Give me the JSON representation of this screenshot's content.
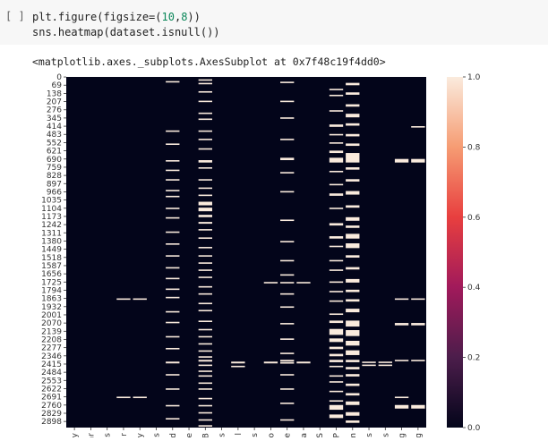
{
  "cell": {
    "run_label": "[ ]",
    "code_lines": [
      {
        "pre": "plt.figure(figsize=(",
        "n1": "10",
        "mid": ",",
        "n2": "8",
        "post": "))"
      },
      {
        "pre": "sns.heatmap(dataset.isnull())",
        "n1": "",
        "mid": "",
        "n2": "",
        "post": ""
      }
    ]
  },
  "output": {
    "text": "<matplotlib.axes._subplots.AxesSubplot at 0x7f48c19f4dd0>"
  },
  "chart_data": {
    "type": "heatmap",
    "title": "",
    "xlabel": "",
    "ylabel": "",
    "y_ticks": [
      "0",
      "69",
      "138",
      "207",
      "276",
      "345",
      "414",
      "483",
      "552",
      "621",
      "690",
      "759",
      "828",
      "897",
      "966",
      "1035",
      "1104",
      "1173",
      "1242",
      "1311",
      "1380",
      "1449",
      "1518",
      "1587",
      "1656",
      "1725",
      "1794",
      "1863",
      "1932",
      "2001",
      "2070",
      "2139",
      "2208",
      "2277",
      "2346",
      "2415",
      "2484",
      "2553",
      "2622",
      "2691",
      "2760",
      "2829",
      "2898"
    ],
    "x_ticks": [
      "y",
      "ar",
      "s",
      "r",
      "y",
      "s",
      "ad",
      "e",
      "B",
      "s",
      "l",
      "s",
      "o",
      "e",
      "a",
      "S",
      "P",
      "m",
      "s",
      "s",
      "g",
      "g"
    ],
    "n_rows": 2950,
    "colorbar": {
      "ticks": [
        "0.0",
        "0.2",
        "0.4",
        "0.6",
        "0.8",
        "1.0"
      ],
      "range": [
        0,
        1
      ],
      "colors": [
        "#03051a",
        "#4c1d4b",
        "#a11a5b",
        "#e83f3f",
        "#f69c73",
        "#faebdd"
      ]
    },
    "missing": [
      {
        "col": 3,
        "rows": [
          [
            1863,
            1872
          ],
          [
            2690,
            2698
          ]
        ]
      },
      {
        "col": 4,
        "rows": [
          [
            1863,
            1872
          ],
          [
            2690,
            2698
          ]
        ]
      },
      {
        "col": 6,
        "rows": [
          [
            35,
            46
          ],
          [
            450,
            460
          ],
          [
            560,
            570
          ],
          [
            700,
            710
          ],
          [
            780,
            790
          ],
          [
            860,
            870
          ],
          [
            950,
            960
          ],
          [
            1000,
            1010
          ],
          [
            1100,
            1110
          ],
          [
            1180,
            1190
          ],
          [
            1300,
            1310
          ],
          [
            1400,
            1410
          ],
          [
            1500,
            1510
          ],
          [
            1600,
            1610
          ],
          [
            1690,
            1700
          ],
          [
            1780,
            1790
          ],
          [
            1850,
            1860
          ],
          [
            1970,
            1980
          ],
          [
            2060,
            2070
          ],
          [
            2180,
            2190
          ],
          [
            2280,
            2290
          ],
          [
            2395,
            2410
          ],
          [
            2500,
            2510
          ],
          [
            2620,
            2630
          ],
          [
            2760,
            2770
          ],
          [
            2870,
            2880
          ]
        ]
      },
      {
        "col": 8,
        "rows": [
          [
            20,
            30
          ],
          [
            50,
            60
          ],
          [
            120,
            130
          ],
          [
            200,
            210
          ],
          [
            300,
            310
          ],
          [
            350,
            360
          ],
          [
            450,
            460
          ],
          [
            520,
            530
          ],
          [
            600,
            610
          ],
          [
            700,
            720
          ],
          [
            760,
            770
          ],
          [
            860,
            870
          ],
          [
            930,
            940
          ],
          [
            990,
            1000
          ],
          [
            1050,
            1080
          ],
          [
            1100,
            1130
          ],
          [
            1160,
            1180
          ],
          [
            1220,
            1235
          ],
          [
            1280,
            1290
          ],
          [
            1350,
            1360
          ],
          [
            1430,
            1440
          ],
          [
            1500,
            1510
          ],
          [
            1560,
            1570
          ],
          [
            1620,
            1630
          ],
          [
            1680,
            1690
          ],
          [
            1760,
            1770
          ],
          [
            1820,
            1830
          ],
          [
            1900,
            1910
          ],
          [
            1960,
            1970
          ],
          [
            2050,
            2060
          ],
          [
            2120,
            2130
          ],
          [
            2180,
            2190
          ],
          [
            2240,
            2250
          ],
          [
            2300,
            2310
          ],
          [
            2350,
            2360
          ],
          [
            2380,
            2395
          ],
          [
            2420,
            2430
          ],
          [
            2470,
            2480
          ],
          [
            2510,
            2520
          ],
          [
            2570,
            2580
          ],
          [
            2620,
            2630
          ],
          [
            2700,
            2710
          ],
          [
            2760,
            2770
          ],
          [
            2820,
            2830
          ],
          [
            2880,
            2890
          ],
          [
            2930,
            2940
          ]
        ]
      },
      {
        "col": 10,
        "rows": [
          [
            2395,
            2410
          ],
          [
            2430,
            2440
          ]
        ]
      },
      {
        "col": 12,
        "rows": [
          [
            1725,
            1735
          ],
          [
            2395,
            2410
          ]
        ]
      },
      {
        "col": 13,
        "rows": [
          [
            40,
            50
          ],
          [
            200,
            210
          ],
          [
            340,
            350
          ],
          [
            520,
            530
          ],
          [
            680,
            700
          ],
          [
            800,
            810
          ],
          [
            960,
            970
          ],
          [
            1200,
            1210
          ],
          [
            1380,
            1390
          ],
          [
            1540,
            1550
          ],
          [
            1660,
            1670
          ],
          [
            1725,
            1735
          ],
          [
            1820,
            1830
          ],
          [
            1930,
            1940
          ],
          [
            2070,
            2080
          ],
          [
            2200,
            2210
          ],
          [
            2320,
            2330
          ],
          [
            2380,
            2395
          ],
          [
            2400,
            2410
          ],
          [
            2500,
            2510
          ],
          [
            2620,
            2630
          ],
          [
            2740,
            2750
          ],
          [
            2880,
            2890
          ]
        ]
      },
      {
        "col": 14,
        "rows": [
          [
            1725,
            1735
          ],
          [
            2395,
            2410
          ]
        ]
      },
      {
        "col": 16,
        "rows": [
          [
            100,
            110
          ],
          [
            150,
            160
          ],
          [
            280,
            290
          ],
          [
            400,
            420
          ],
          [
            480,
            490
          ],
          [
            550,
            560
          ],
          [
            620,
            640
          ],
          [
            680,
            720
          ],
          [
            790,
            800
          ],
          [
            900,
            910
          ],
          [
            980,
            1000
          ],
          [
            1100,
            1110
          ],
          [
            1230,
            1250
          ],
          [
            1340,
            1360
          ],
          [
            1420,
            1430
          ],
          [
            1540,
            1550
          ],
          [
            1620,
            1630
          ],
          [
            1720,
            1730
          ],
          [
            1800,
            1810
          ],
          [
            1880,
            1890
          ],
          [
            1990,
            2000
          ],
          [
            2050,
            2070
          ],
          [
            2120,
            2170
          ],
          [
            2200,
            2230
          ],
          [
            2270,
            2290
          ],
          [
            2330,
            2350
          ],
          [
            2380,
            2400
          ],
          [
            2430,
            2440
          ],
          [
            2510,
            2520
          ],
          [
            2560,
            2570
          ],
          [
            2640,
            2650
          ],
          [
            2720,
            2730
          ],
          [
            2760,
            2800
          ],
          [
            2840,
            2870
          ]
        ]
      },
      {
        "col": 17,
        "rows": [
          [
            50,
            70
          ],
          [
            130,
            150
          ],
          [
            230,
            250
          ],
          [
            310,
            340
          ],
          [
            390,
            410
          ],
          [
            480,
            500
          ],
          [
            560,
            580
          ],
          [
            640,
            720
          ],
          [
            760,
            780
          ],
          [
            860,
            880
          ],
          [
            960,
            990
          ],
          [
            1080,
            1100
          ],
          [
            1180,
            1210
          ],
          [
            1250,
            1270
          ],
          [
            1320,
            1360
          ],
          [
            1400,
            1440
          ],
          [
            1500,
            1520
          ],
          [
            1600,
            1620
          ],
          [
            1700,
            1730
          ],
          [
            1790,
            1810
          ],
          [
            1870,
            1890
          ],
          [
            1950,
            1980
          ],
          [
            2050,
            2100
          ],
          [
            2130,
            2180
          ],
          [
            2220,
            2260
          ],
          [
            2300,
            2340
          ],
          [
            2380,
            2400
          ],
          [
            2440,
            2460
          ],
          [
            2500,
            2520
          ],
          [
            2580,
            2600
          ],
          [
            2660,
            2680
          ],
          [
            2730,
            2760
          ],
          [
            2820,
            2850
          ],
          [
            2890,
            2910
          ]
        ]
      },
      {
        "col": 18,
        "rows": [
          [
            2395,
            2405
          ],
          [
            2420,
            2430
          ]
        ]
      },
      {
        "col": 19,
        "rows": [
          [
            2395,
            2405
          ],
          [
            2420,
            2430
          ]
        ]
      },
      {
        "col": 20,
        "rows": [
          [
            690,
            720
          ],
          [
            1863,
            1872
          ],
          [
            2070,
            2090
          ],
          [
            2380,
            2390
          ],
          [
            2690,
            2698
          ],
          [
            2760,
            2790
          ]
        ]
      },
      {
        "col": 21,
        "rows": [
          [
            414,
            424
          ],
          [
            690,
            720
          ],
          [
            1863,
            1872
          ],
          [
            2070,
            2090
          ],
          [
            2380,
            2390
          ],
          [
            2760,
            2790
          ]
        ]
      }
    ]
  }
}
